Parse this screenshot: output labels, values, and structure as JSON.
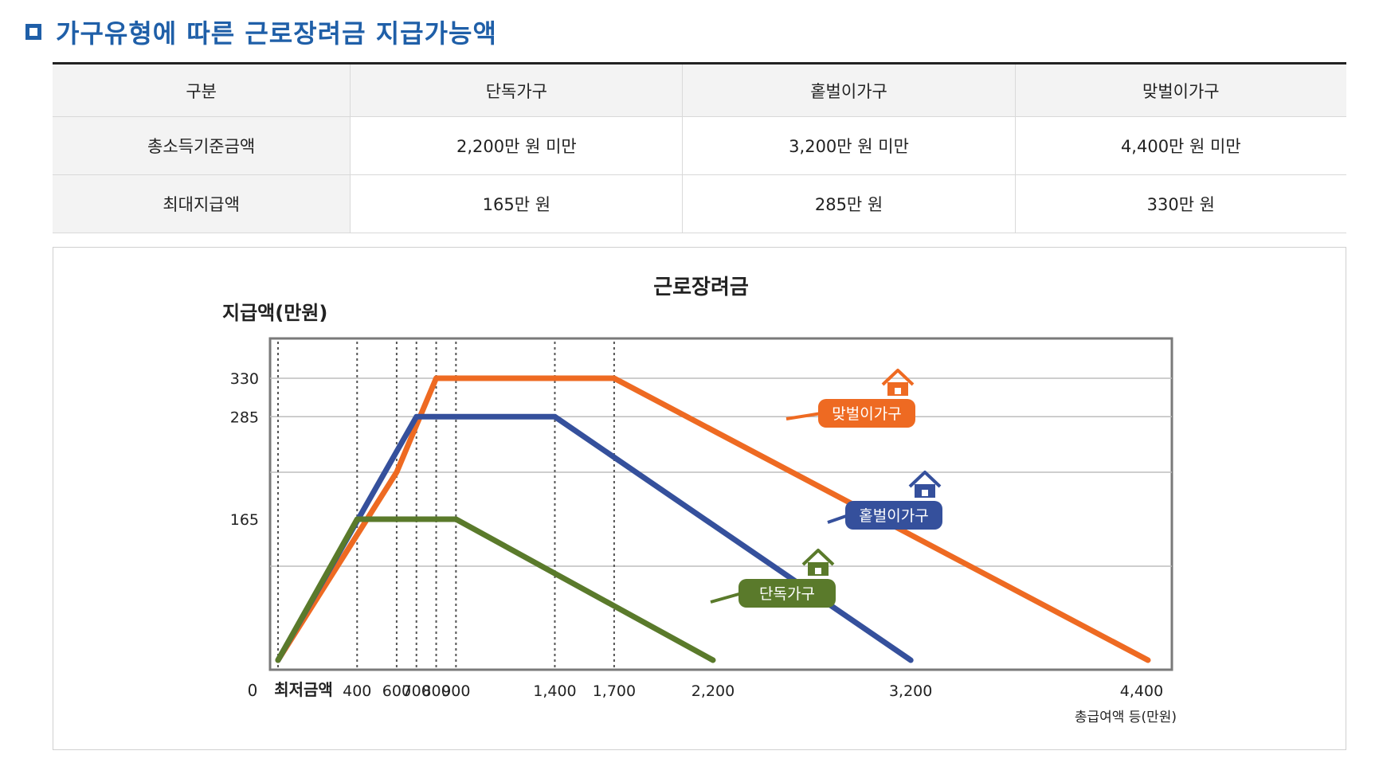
{
  "heading": "가구유형에 따른 근로장려금 지급가능액",
  "table": {
    "headers": [
      "구분",
      "단독가구",
      "홑벌이가구",
      "맞벌이가구"
    ],
    "rows": [
      {
        "label": "총소득기준금액",
        "values": [
          "2,200만 원 미만",
          "3,200만 원 미만",
          "4,400만 원 미만"
        ]
      },
      {
        "label": "최대지급액",
        "values": [
          "165만 원",
          "285만 원",
          "330만 원"
        ]
      }
    ]
  },
  "chart_data": {
    "type": "line",
    "title": "근로장려금",
    "ylabel": "지급액(만원)",
    "xlabel": "총급여액 등(만원)",
    "origin_label": "0",
    "min_wage_label": "최저금액",
    "ylim": [
      0,
      330
    ],
    "xlim": [
      0,
      4400
    ],
    "y_ticks": [
      {
        "value": 330,
        "label": "330"
      },
      {
        "value": 285,
        "label": "285"
      },
      {
        "value": 165,
        "label": "165"
      }
    ],
    "x_ticks": [
      {
        "value": 400,
        "label": "400"
      },
      {
        "value": 600,
        "label": "600"
      },
      {
        "value": 700,
        "label": "700"
      },
      {
        "value": 800,
        "label": "800"
      },
      {
        "value": 900,
        "label": "900"
      },
      {
        "value": 1400,
        "label": "1,400"
      },
      {
        "value": 1700,
        "label": "1,700"
      },
      {
        "value": 2200,
        "label": "2,200"
      },
      {
        "value": 3200,
        "label": "3,200"
      },
      {
        "value": 4400,
        "label": "4,400"
      }
    ],
    "dotted_x": [
      0,
      400,
      600,
      700,
      800,
      900,
      1400,
      1700
    ],
    "gridlines_y": [
      330,
      285,
      220,
      110
    ],
    "series": [
      {
        "name": "맞벌이가구",
        "color": "#ee6a22",
        "points": [
          [
            0,
            0
          ],
          [
            600,
            220
          ],
          [
            800,
            330
          ],
          [
            1700,
            330
          ],
          [
            4400,
            0
          ]
        ]
      },
      {
        "name": "홑벌이가구",
        "color": "#35509c",
        "points": [
          [
            0,
            0
          ],
          [
            700,
            285
          ],
          [
            1400,
            285
          ],
          [
            3200,
            0
          ]
        ]
      },
      {
        "name": "단독가구",
        "color": "#5a7a2b",
        "points": [
          [
            0,
            0
          ],
          [
            400,
            165
          ],
          [
            900,
            165
          ],
          [
            2200,
            0
          ]
        ]
      }
    ],
    "legend_boxes": [
      {
        "series": "맞벌이가구",
        "color": "#ee6a22",
        "icon": "house-icon"
      },
      {
        "series": "홑벌이가구",
        "color": "#35509c",
        "icon": "house-icon"
      },
      {
        "series": "단독가구",
        "color": "#5a7a2b",
        "icon": "house-icon"
      }
    ],
    "grid": true
  }
}
